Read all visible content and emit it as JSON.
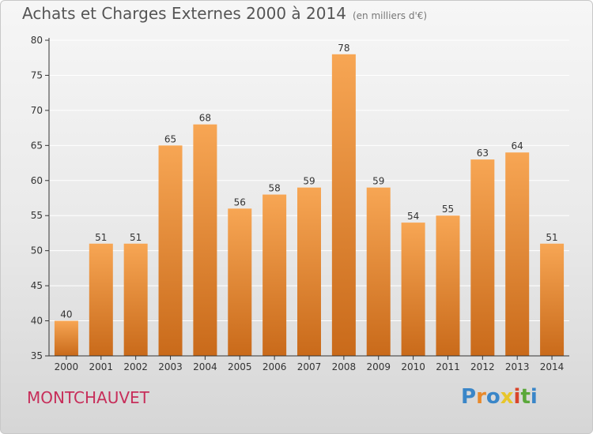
{
  "header": {
    "title": "Achats et Charges Externes 2000 à 2014",
    "subtitle": "(en milliers d'€)"
  },
  "footer": {
    "commune": "MONTCHAUVET",
    "logo": "Proxiti",
    "logo_letters": [
      {
        "char": "P",
        "color": "#3a86c8"
      },
      {
        "char": "r",
        "color": "#e8892b"
      },
      {
        "char": "o",
        "color": "#3a86c8"
      },
      {
        "char": "x",
        "color": "#e8c62b"
      },
      {
        "char": "i",
        "color": "#d9452b"
      },
      {
        "char": "t",
        "color": "#5aa83a"
      },
      {
        "char": "i",
        "color": "#3a86c8"
      }
    ]
  },
  "colors": {
    "bar_top": "#f7a654",
    "bar_bottom": "#c96a1a",
    "axis": "#333333",
    "grid": "#ffffff"
  },
  "chart_data": {
    "type": "bar",
    "title": "Achats et Charges Externes 2000 à 2014",
    "subtitle": "(en milliers d'€)",
    "xlabel": "",
    "ylabel": "",
    "categories": [
      "2000",
      "2001",
      "2002",
      "2003",
      "2004",
      "2005",
      "2006",
      "2007",
      "2008",
      "2009",
      "2010",
      "2011",
      "2012",
      "2013",
      "2014"
    ],
    "values": [
      40,
      51,
      51,
      65,
      68,
      56,
      58,
      59,
      78,
      59,
      54,
      55,
      63,
      64,
      51
    ],
    "ylim": [
      35,
      80
    ],
    "yticks": [
      35,
      40,
      45,
      50,
      55,
      60,
      65,
      70,
      75,
      80
    ],
    "grid": true,
    "data_labels": true
  }
}
